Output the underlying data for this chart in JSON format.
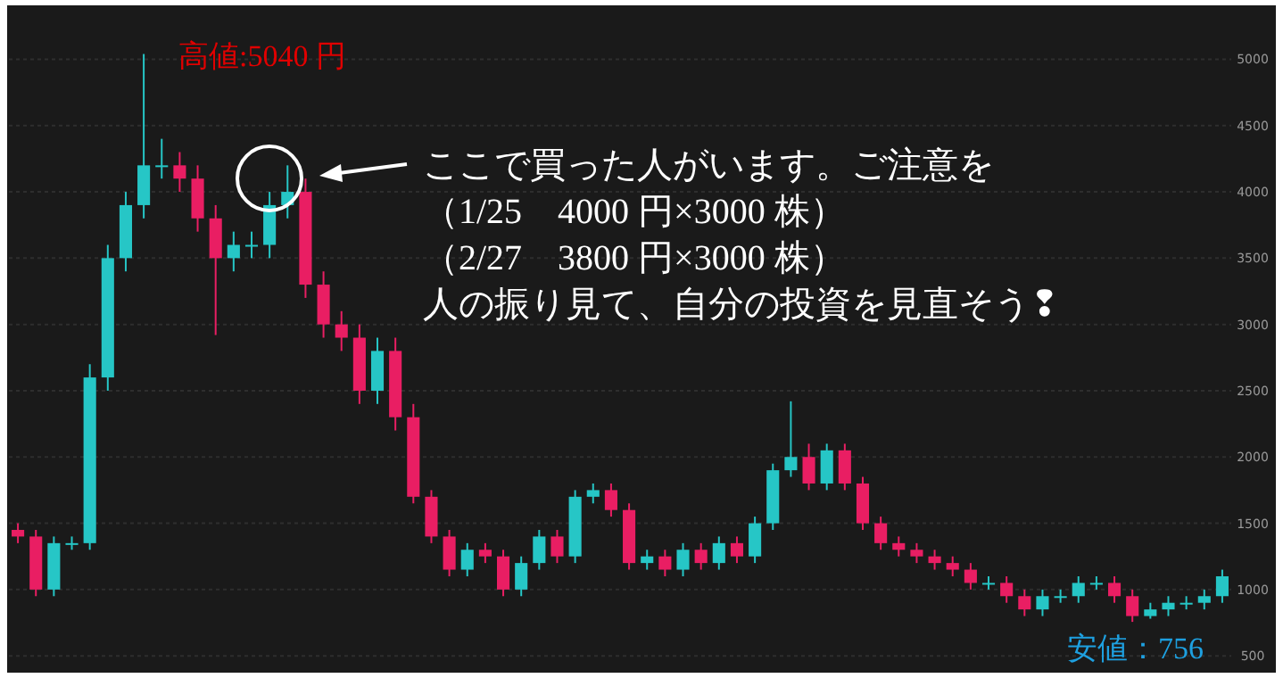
{
  "chart_data": {
    "type": "candlestick",
    "categories": [
      null,
      null,
      null,
      null,
      null,
      null,
      null,
      null,
      null,
      null,
      null,
      null,
      null,
      null,
      null,
      null,
      null,
      null,
      null,
      null,
      null,
      null,
      null,
      null,
      null,
      null,
      null,
      null,
      null,
      null,
      null,
      null,
      null,
      null,
      null,
      null,
      null,
      null,
      null,
      null,
      null,
      null,
      null,
      null,
      null,
      null,
      null,
      null,
      null,
      null,
      null,
      null,
      null,
      null,
      null,
      null,
      null,
      null,
      null,
      null,
      null,
      null,
      null,
      null,
      null,
      null,
      null,
      null
    ],
    "ohlc": [
      [
        1450,
        1500,
        1350,
        1400
      ],
      [
        1400,
        1450,
        950,
        1000
      ],
      [
        1000,
        1400,
        950,
        1350
      ],
      [
        1350,
        1400,
        1300,
        1350
      ],
      [
        1350,
        2700,
        1300,
        2600
      ],
      [
        2600,
        3600,
        2500,
        3500
      ],
      [
        3500,
        4000,
        3400,
        3900
      ],
      [
        3900,
        5040,
        3800,
        4200
      ],
      [
        4200,
        4400,
        4100,
        4200
      ],
      [
        4200,
        4300,
        4000,
        4100
      ],
      [
        4100,
        4200,
        3700,
        3800
      ],
      [
        3800,
        3900,
        2920,
        3500
      ],
      [
        3500,
        3700,
        3400,
        3600
      ],
      [
        3600,
        3700,
        3500,
        3600
      ],
      [
        3600,
        4000,
        3500,
        3900
      ],
      [
        3900,
        4200,
        3800,
        4000
      ],
      [
        4000,
        4100,
        3200,
        3300
      ],
      [
        3300,
        3400,
        2900,
        3000
      ],
      [
        3000,
        3100,
        2800,
        2900
      ],
      [
        2900,
        3000,
        2400,
        2500
      ],
      [
        2500,
        2900,
        2400,
        2800
      ],
      [
        2800,
        2900,
        2200,
        2300
      ],
      [
        2300,
        2400,
        1650,
        1700
      ],
      [
        1700,
        1750,
        1350,
        1400
      ],
      [
        1400,
        1450,
        1100,
        1150
      ],
      [
        1150,
        1350,
        1100,
        1300
      ],
      [
        1300,
        1350,
        1200,
        1250
      ],
      [
        1250,
        1300,
        950,
        1000
      ],
      [
        1000,
        1250,
        950,
        1200
      ],
      [
        1200,
        1450,
        1150,
        1400
      ],
      [
        1400,
        1450,
        1200,
        1250
      ],
      [
        1250,
        1750,
        1200,
        1700
      ],
      [
        1700,
        1800,
        1650,
        1750
      ],
      [
        1750,
        1800,
        1550,
        1600
      ],
      [
        1600,
        1650,
        1150,
        1200
      ],
      [
        1200,
        1300,
        1150,
        1250
      ],
      [
        1250,
        1300,
        1100,
        1150
      ],
      [
        1150,
        1350,
        1100,
        1300
      ],
      [
        1300,
        1350,
        1150,
        1200
      ],
      [
        1200,
        1400,
        1150,
        1350
      ],
      [
        1350,
        1400,
        1200,
        1250
      ],
      [
        1250,
        1550,
        1200,
        1500
      ],
      [
        1500,
        1950,
        1450,
        1900
      ],
      [
        1900,
        2420,
        1850,
        2000
      ],
      [
        2000,
        2100,
        1750,
        1800
      ],
      [
        1800,
        2100,
        1750,
        2050
      ],
      [
        2050,
        2100,
        1750,
        1800
      ],
      [
        1800,
        1850,
        1450,
        1500
      ],
      [
        1500,
        1550,
        1300,
        1350
      ],
      [
        1350,
        1400,
        1250,
        1300
      ],
      [
        1300,
        1350,
        1200,
        1250
      ],
      [
        1250,
        1300,
        1150,
        1200
      ],
      [
        1200,
        1250,
        1100,
        1150
      ],
      [
        1150,
        1200,
        1000,
        1050
      ],
      [
        1050,
        1100,
        1000,
        1050
      ],
      [
        1050,
        1100,
        900,
        950
      ],
      [
        950,
        1000,
        800,
        850
      ],
      [
        850,
        1000,
        800,
        950
      ],
      [
        950,
        1000,
        900,
        950
      ],
      [
        950,
        1100,
        900,
        1050
      ],
      [
        1050,
        1100,
        1000,
        1050
      ],
      [
        1050,
        1100,
        900,
        950
      ],
      [
        950,
        1000,
        756,
        800
      ],
      [
        800,
        900,
        780,
        850
      ],
      [
        850,
        950,
        800,
        900
      ],
      [
        900,
        950,
        850,
        900
      ],
      [
        900,
        1000,
        850,
        950
      ],
      [
        950,
        1150,
        900,
        1100
      ]
    ],
    "colors": [
      "#e91e63",
      "#e91e63",
      "#26c6c6",
      "#26c6c6",
      "#26c6c6",
      "#26c6c6",
      "#26c6c6",
      "#26c6c6",
      "#26c6c6",
      "#e91e63",
      "#e91e63",
      "#e91e63",
      "#26c6c6",
      "#26c6c6",
      "#26c6c6",
      "#26c6c6",
      "#e91e63",
      "#e91e63",
      "#e91e63",
      "#e91e63",
      "#26c6c6",
      "#e91e63",
      "#e91e63",
      "#e91e63",
      "#e91e63",
      "#26c6c6",
      "#e91e63",
      "#e91e63",
      "#26c6c6",
      "#26c6c6",
      "#e91e63",
      "#26c6c6",
      "#26c6c6",
      "#e91e63",
      "#e91e63",
      "#26c6c6",
      "#e91e63",
      "#26c6c6",
      "#e91e63",
      "#26c6c6",
      "#e91e63",
      "#26c6c6",
      "#26c6c6",
      "#26c6c6",
      "#e91e63",
      "#26c6c6",
      "#e91e63",
      "#e91e63",
      "#e91e63",
      "#e91e63",
      "#e91e63",
      "#e91e63",
      "#e91e63",
      "#e91e63",
      "#26c6c6",
      "#e91e63",
      "#e91e63",
      "#26c6c6",
      "#26c6c6",
      "#26c6c6",
      "#26c6c6",
      "#e91e63",
      "#e91e63",
      "#26c6c6",
      "#26c6c6",
      "#26c6c6",
      "#26c6c6",
      "#26c6c6"
    ],
    "ylim": [
      400,
      5380
    ],
    "yticks": [
      500,
      1000,
      1500,
      2000,
      2500,
      3000,
      3500,
      4000,
      4500,
      5000
    ],
    "grid": "y",
    "tick_labels": "y",
    "annotations": [
      "高値:5040 円",
      "ここで買った人がいます。ご注意を",
      "（1/25　4000 円×3000 株）",
      "（2/27　3800 円×3000 株）",
      "人の振り見て、自分の投資を見直そう❢",
      "安値：756"
    ]
  }
}
